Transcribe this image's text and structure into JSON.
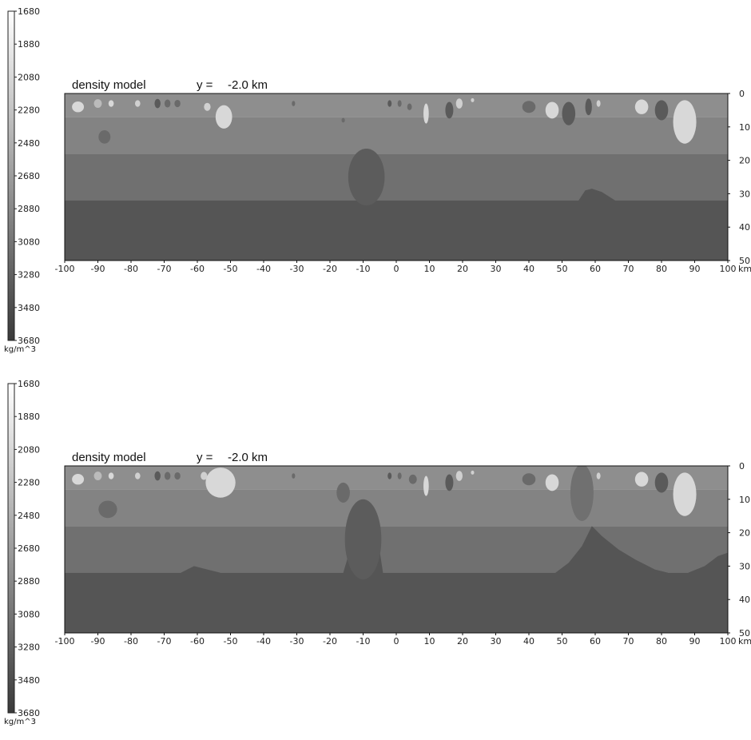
{
  "colorbar": {
    "ticks": [
      "1680",
      "1880",
      "2080",
      "2280",
      "2480",
      "2680",
      "2880",
      "3080",
      "3280",
      "3480",
      "3680"
    ],
    "unit": "kg/m^3",
    "min": 1680,
    "max": 3680,
    "colors": {
      "low": "#ffffff",
      "high": "#3a3a3a"
    }
  },
  "chart_data": [
    {
      "type": "heatmap",
      "title": "density model",
      "slice_label": "y =",
      "slice_value": "-2.0 km",
      "xlim": [
        -100,
        100
      ],
      "ylim": [
        0,
        50
      ],
      "x_ticks": [
        "-100",
        "-90",
        "-80",
        "-70",
        "-60",
        "-50",
        "-40",
        "-30",
        "-20",
        "-10",
        "0",
        "10",
        "20",
        "30",
        "40",
        "50",
        "60",
        "70",
        "80",
        "90",
        "100"
      ],
      "x_unit": "km",
      "y_ticks": [
        "0",
        "10",
        "20",
        "30",
        "40",
        "50"
      ],
      "layers": [
        {
          "top_km": 0,
          "bottom_km": 7,
          "density": 2380,
          "color": "#8e8e8e"
        },
        {
          "top_km": 7,
          "bottom_km": 18,
          "density": 2520,
          "color": "#838383"
        },
        {
          "top_km": 18,
          "bottom_km": 32,
          "density": 2700,
          "color": "#707070"
        },
        {
          "top_km": 32,
          "bottom_km": 50,
          "density": 3100,
          "color": "#555555"
        }
      ],
      "anomalies": [
        {
          "shape": "ellipse",
          "x": -96,
          "z": 4,
          "rx": 1.8,
          "rz": 1.6,
          "color": "#d8d8d8"
        },
        {
          "shape": "ellipse",
          "x": -90,
          "z": 3,
          "rx": 1.2,
          "rz": 1.3,
          "color": "#bbbbbb"
        },
        {
          "shape": "ellipse",
          "x": -86,
          "z": 3,
          "rx": 0.8,
          "rz": 1.0,
          "color": "#d8d8d8"
        },
        {
          "shape": "ellipse",
          "x": -78,
          "z": 3,
          "rx": 0.8,
          "rz": 1.0,
          "color": "#d0d0d0"
        },
        {
          "shape": "ellipse",
          "x": -72,
          "z": 3,
          "rx": 0.9,
          "rz": 1.4,
          "color": "#5a5a5a"
        },
        {
          "shape": "ellipse",
          "x": -69,
          "z": 3,
          "rx": 0.9,
          "rz": 1.2,
          "color": "#6a6a6a"
        },
        {
          "shape": "ellipse",
          "x": -66,
          "z": 3,
          "rx": 0.9,
          "rz": 1.1,
          "color": "#6a6a6a"
        },
        {
          "shape": "ellipse",
          "x": -88,
          "z": 13,
          "rx": 1.8,
          "rz": 2.0,
          "color": "#6a6a6a"
        },
        {
          "shape": "ellipse",
          "x": -52,
          "z": 7,
          "rx": 2.5,
          "rz": 3.5,
          "color": "#d8d8d8"
        },
        {
          "shape": "ellipse",
          "x": -57,
          "z": 4,
          "rx": 1.0,
          "rz": 1.2,
          "color": "#d0d0d0"
        },
        {
          "shape": "ellipse",
          "x": -31,
          "z": 3,
          "rx": 0.5,
          "rz": 0.8,
          "color": "#6a6a6a"
        },
        {
          "shape": "ellipse",
          "x": -16,
          "z": 8,
          "rx": 0.5,
          "rz": 0.7,
          "color": "#6a6a6a"
        },
        {
          "shape": "ellipse",
          "x": -9,
          "z": 25,
          "rx": 5.5,
          "rz": 8.5,
          "color": "#5c5c5c"
        },
        {
          "shape": "ellipse",
          "x": -2,
          "z": 3,
          "rx": 0.6,
          "rz": 1.0,
          "color": "#5a5a5a"
        },
        {
          "shape": "ellipse",
          "x": 1,
          "z": 3,
          "rx": 0.6,
          "rz": 1.0,
          "color": "#6a6a6a"
        },
        {
          "shape": "ellipse",
          "x": 4,
          "z": 4,
          "rx": 0.7,
          "rz": 1.0,
          "color": "#6a6a6a"
        },
        {
          "shape": "ellipse",
          "x": 9,
          "z": 6,
          "rx": 0.8,
          "rz": 3.0,
          "color": "#d8d8d8"
        },
        {
          "shape": "ellipse",
          "x": 16,
          "z": 5,
          "rx": 1.2,
          "rz": 2.5,
          "color": "#5a5a5a"
        },
        {
          "shape": "ellipse",
          "x": 19,
          "z": 3,
          "rx": 1.0,
          "rz": 1.5,
          "color": "#d0d0d0"
        },
        {
          "shape": "ellipse",
          "x": 23,
          "z": 2,
          "rx": 0.5,
          "rz": 0.6,
          "color": "#d0d0d0"
        },
        {
          "shape": "ellipse",
          "x": 40,
          "z": 4,
          "rx": 2.0,
          "rz": 1.8,
          "color": "#6a6a6a"
        },
        {
          "shape": "ellipse",
          "x": 47,
          "z": 5,
          "rx": 2.0,
          "rz": 2.5,
          "color": "#d8d8d8"
        },
        {
          "shape": "ellipse",
          "x": 52,
          "z": 6,
          "rx": 2.0,
          "rz": 3.5,
          "color": "#5a5a5a"
        },
        {
          "shape": "ellipse",
          "x": 58,
          "z": 4,
          "rx": 1.0,
          "rz": 2.5,
          "color": "#5a5a5a"
        },
        {
          "shape": "ellipse",
          "x": 61,
          "z": 3,
          "rx": 0.6,
          "rz": 1.0,
          "color": "#d0d0d0"
        },
        {
          "shape": "ellipse",
          "x": 74,
          "z": 4,
          "rx": 2.0,
          "rz": 2.2,
          "color": "#d8d8d8"
        },
        {
          "shape": "ellipse",
          "x": 80,
          "z": 5,
          "rx": 2.0,
          "rz": 3.0,
          "color": "#5a5a5a"
        },
        {
          "shape": "ellipse",
          "x": 87,
          "z": 8.5,
          "rx": 3.5,
          "rz": 6.5,
          "color": "#d8d8d8"
        }
      ],
      "moho_points": [
        [
          -100,
          32
        ],
        [
          55,
          32
        ],
        [
          57,
          29
        ],
        [
          59,
          28.5
        ],
        [
          62,
          29.5
        ],
        [
          66,
          32
        ],
        [
          100,
          32
        ]
      ]
    },
    {
      "type": "heatmap",
      "title": "density model",
      "slice_label": "y =",
      "slice_value": "-2.0 km",
      "xlim": [
        -100,
        100
      ],
      "ylim": [
        0,
        50
      ],
      "x_ticks": [
        "-100",
        "-90",
        "-80",
        "-70",
        "-60",
        "-50",
        "-40",
        "-30",
        "-20",
        "-10",
        "0",
        "10",
        "20",
        "30",
        "40",
        "50",
        "60",
        "70",
        "80",
        "90",
        "100"
      ],
      "x_unit": "km",
      "y_ticks": [
        "0",
        "10",
        "20",
        "30",
        "40",
        "50"
      ],
      "layers": [
        {
          "top_km": 0,
          "bottom_km": 7,
          "density": 2380,
          "color": "#8e8e8e"
        },
        {
          "top_km": 7,
          "bottom_km": 18,
          "density": 2520,
          "color": "#838383"
        },
        {
          "top_km": 18,
          "bottom_km": 32,
          "density": 2700,
          "color": "#707070"
        },
        {
          "top_km": 32,
          "bottom_km": 50,
          "density": 3100,
          "color": "#555555"
        }
      ],
      "anomalies": [
        {
          "shape": "ellipse",
          "x": -96,
          "z": 4,
          "rx": 1.8,
          "rz": 1.6,
          "color": "#d8d8d8"
        },
        {
          "shape": "ellipse",
          "x": -90,
          "z": 3,
          "rx": 1.2,
          "rz": 1.3,
          "color": "#bbbbbb"
        },
        {
          "shape": "ellipse",
          "x": -86,
          "z": 3,
          "rx": 0.8,
          "rz": 1.0,
          "color": "#d8d8d8"
        },
        {
          "shape": "ellipse",
          "x": -78,
          "z": 3,
          "rx": 0.8,
          "rz": 1.0,
          "color": "#d0d0d0"
        },
        {
          "shape": "ellipse",
          "x": -72,
          "z": 3,
          "rx": 0.9,
          "rz": 1.4,
          "color": "#5a5a5a"
        },
        {
          "shape": "ellipse",
          "x": -69,
          "z": 3,
          "rx": 0.9,
          "rz": 1.2,
          "color": "#6a6a6a"
        },
        {
          "shape": "ellipse",
          "x": -66,
          "z": 3,
          "rx": 0.9,
          "rz": 1.1,
          "color": "#6a6a6a"
        },
        {
          "shape": "ellipse",
          "x": -87,
          "z": 13,
          "rx": 2.8,
          "rz": 2.6,
          "color": "#6a6a6a"
        },
        {
          "shape": "ellipse",
          "x": -53,
          "z": 5,
          "rx": 4.5,
          "rz": 4.5,
          "color": "#d8d8d8"
        },
        {
          "shape": "ellipse",
          "x": -58,
          "z": 3,
          "rx": 1.0,
          "rz": 1.2,
          "color": "#d0d0d0"
        },
        {
          "shape": "ellipse",
          "x": -31,
          "z": 3,
          "rx": 0.5,
          "rz": 0.8,
          "color": "#6a6a6a"
        },
        {
          "shape": "ellipse",
          "x": -16,
          "z": 8,
          "rx": 2.0,
          "rz": 3.0,
          "color": "#6a6a6a"
        },
        {
          "shape": "ellipse",
          "x": -10,
          "z": 22,
          "rx": 5.5,
          "rz": 12,
          "color": "#5c5c5c"
        },
        {
          "shape": "ellipse",
          "x": -2,
          "z": 3,
          "rx": 0.6,
          "rz": 1.0,
          "color": "#5a5a5a"
        },
        {
          "shape": "ellipse",
          "x": 1,
          "z": 3,
          "rx": 0.6,
          "rz": 1.0,
          "color": "#6a6a6a"
        },
        {
          "shape": "ellipse",
          "x": 5,
          "z": 4,
          "rx": 1.2,
          "rz": 1.4,
          "color": "#6a6a6a"
        },
        {
          "shape": "ellipse",
          "x": 9,
          "z": 6,
          "rx": 0.8,
          "rz": 3.0,
          "color": "#d8d8d8"
        },
        {
          "shape": "ellipse",
          "x": 16,
          "z": 5,
          "rx": 1.2,
          "rz": 2.5,
          "color": "#5a5a5a"
        },
        {
          "shape": "ellipse",
          "x": 19,
          "z": 3,
          "rx": 1.0,
          "rz": 1.5,
          "color": "#d0d0d0"
        },
        {
          "shape": "ellipse",
          "x": 23,
          "z": 2,
          "rx": 0.5,
          "rz": 0.6,
          "color": "#d0d0d0"
        },
        {
          "shape": "ellipse",
          "x": 40,
          "z": 4,
          "rx": 2.0,
          "rz": 1.8,
          "color": "#6a6a6a"
        },
        {
          "shape": "ellipse",
          "x": 47,
          "z": 5,
          "rx": 2.0,
          "rz": 2.5,
          "color": "#d8d8d8"
        },
        {
          "shape": "ellipse",
          "x": 56,
          "z": 8,
          "rx": 3.5,
          "rz": 8.5,
          "color": "#707070"
        },
        {
          "shape": "ellipse",
          "x": 61,
          "z": 3,
          "rx": 0.6,
          "rz": 1.0,
          "color": "#d0d0d0"
        },
        {
          "shape": "ellipse",
          "x": 74,
          "z": 4,
          "rx": 2.0,
          "rz": 2.2,
          "color": "#d8d8d8"
        },
        {
          "shape": "ellipse",
          "x": 80,
          "z": 5,
          "rx": 2.0,
          "rz": 3.0,
          "color": "#5a5a5a"
        },
        {
          "shape": "ellipse",
          "x": 87,
          "z": 8.5,
          "rx": 3.5,
          "rz": 6.5,
          "color": "#d8d8d8"
        }
      ],
      "moho_points": [
        [
          -100,
          32
        ],
        [
          -65,
          32
        ],
        [
          -61,
          30
        ],
        [
          -57,
          31
        ],
        [
          -53,
          32
        ],
        [
          -16,
          32
        ],
        [
          -13,
          22
        ],
        [
          -9,
          18
        ],
        [
          -6,
          19
        ],
        [
          -4,
          32
        ],
        [
          48,
          32
        ],
        [
          52,
          29
        ],
        [
          56,
          24
        ],
        [
          59,
          18
        ],
        [
          62,
          21
        ],
        [
          67,
          25
        ],
        [
          72,
          28
        ],
        [
          78,
          31
        ],
        [
          82,
          32
        ],
        [
          88,
          32
        ],
        [
          93,
          30
        ],
        [
          97,
          27
        ],
        [
          100,
          26
        ]
      ]
    }
  ]
}
